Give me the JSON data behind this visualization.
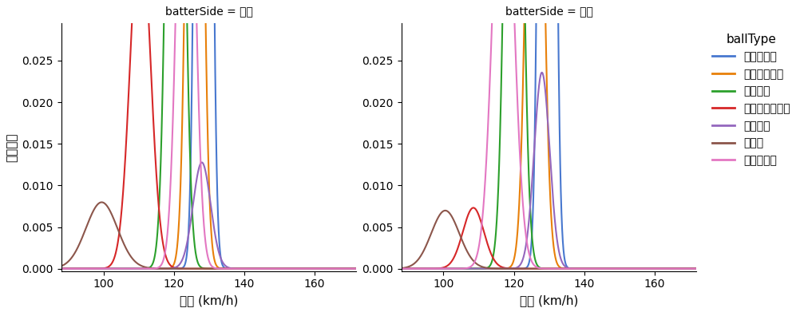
{
  "title_left": "batterSide = 左打",
  "title_right": "batterSide = 右打",
  "xlabel": "球速 (km/h)",
  "ylabel": "確率密度",
  "legend_title": "ballType",
  "xlim": [
    88,
    172
  ],
  "ylim": [
    -0.0003,
    0.0295
  ],
  "yticks": [
    0.0,
    0.005,
    0.01,
    0.015,
    0.02,
    0.025
  ],
  "xticks": [
    100,
    120,
    140,
    160
  ],
  "ball_types": [
    "ストレート",
    "カットボール",
    "シンカー",
    "チェンジアップ",
    "シュート",
    "カーブ",
    "スライダー"
  ],
  "colors": [
    "#4878cf",
    "#e8800a",
    "#2ca02c",
    "#d62728",
    "#9467bd",
    "#8c564b",
    "#e377c2"
  ],
  "left": {
    "ストレート": {
      "mean": 128.5,
      "std": 1.5,
      "weight": 1.0
    },
    "カットボール": {
      "mean": 126.0,
      "std": 1.8,
      "weight": 0.58
    },
    "シンカー": {
      "mean": 120.5,
      "std": 2.0,
      "weight": 0.58
    },
    "チェンジアップ": {
      "mean": 110.5,
      "std": 2.8,
      "weight": 0.3
    },
    "シュート": {
      "mean": 128.0,
      "std": 2.5,
      "weight": 0.08
    },
    "カーブ": {
      "mean": 99.5,
      "std": 4.5,
      "weight": 0.09
    },
    "スライダー": {
      "mean": 123.5,
      "std": 2.2,
      "weight": 0.42
    }
  },
  "right": {
    "ストレート": {
      "mean": 129.5,
      "std": 1.5,
      "weight": 1.0
    },
    "カットボール": {
      "mean": 126.0,
      "std": 2.0,
      "weight": 0.47
    },
    "シンカー": {
      "mean": 120.0,
      "std": 2.0,
      "weight": 0.55
    },
    "チェンジアップ": {
      "mean": 108.5,
      "std": 3.0,
      "weight": 0.055
    },
    "シュート": {
      "mean": 128.0,
      "std": 2.2,
      "weight": 0.13
    },
    "カーブ": {
      "mean": 100.5,
      "std": 4.0,
      "weight": 0.07
    },
    "スライダー": {
      "mean": 117.0,
      "std": 2.8,
      "weight": 0.4
    }
  },
  "background_color": "#ffffff"
}
